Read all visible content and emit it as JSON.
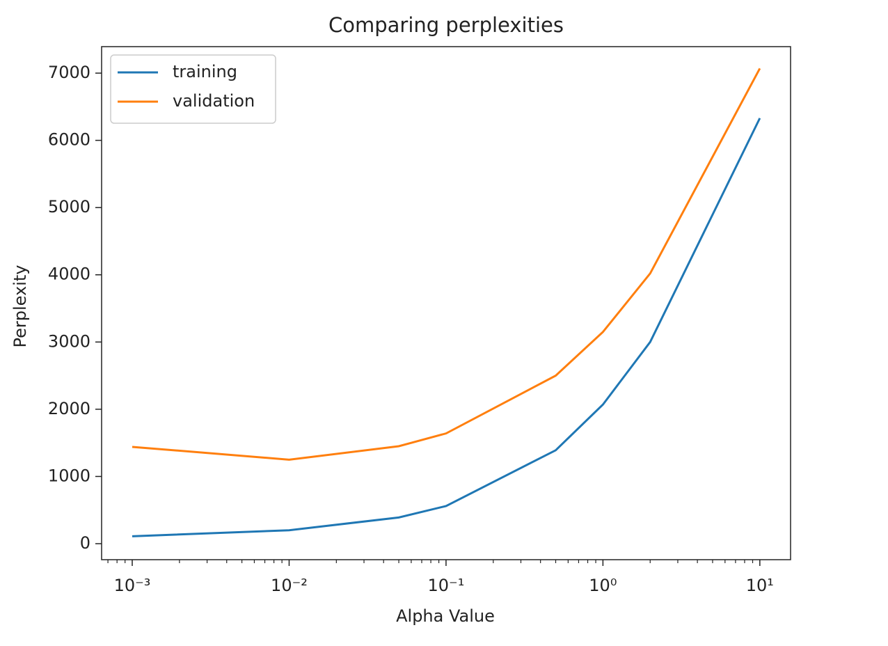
{
  "chart_data": {
    "type": "line",
    "title": "Comparing perplexities",
    "x_label": "Alpha Value",
    "y_label": "Perplexity",
    "x": [
      0.001,
      0.01,
      0.05,
      0.1,
      0.5,
      1,
      2,
      10
    ],
    "series": [
      {
        "name": "training",
        "color": "#1f77b4",
        "values": [
          110,
          200,
          390,
          560,
          1390,
          2070,
          3000,
          6330
        ]
      },
      {
        "name": "validation",
        "color": "#ff7f0e",
        "values": [
          1440,
          1250,
          1450,
          1640,
          2500,
          3150,
          4020,
          7070
        ]
      }
    ],
    "x_scale": "log",
    "xlim": [
      0.000638,
      15.7
    ],
    "xticks": [
      {
        "value": 0.001,
        "label": "10⁻³"
      },
      {
        "value": 0.01,
        "label": "10⁻²"
      },
      {
        "value": 0.1,
        "label": "10⁻¹"
      },
      {
        "value": 1,
        "label": "10⁰"
      },
      {
        "value": 10,
        "label": "10¹"
      }
    ],
    "ylim": [
      -238,
      7394
    ],
    "yticks": [
      0,
      1000,
      2000,
      3000,
      4000,
      5000,
      6000,
      7000
    ],
    "grid": false,
    "legend_loc": "upper-left"
  }
}
